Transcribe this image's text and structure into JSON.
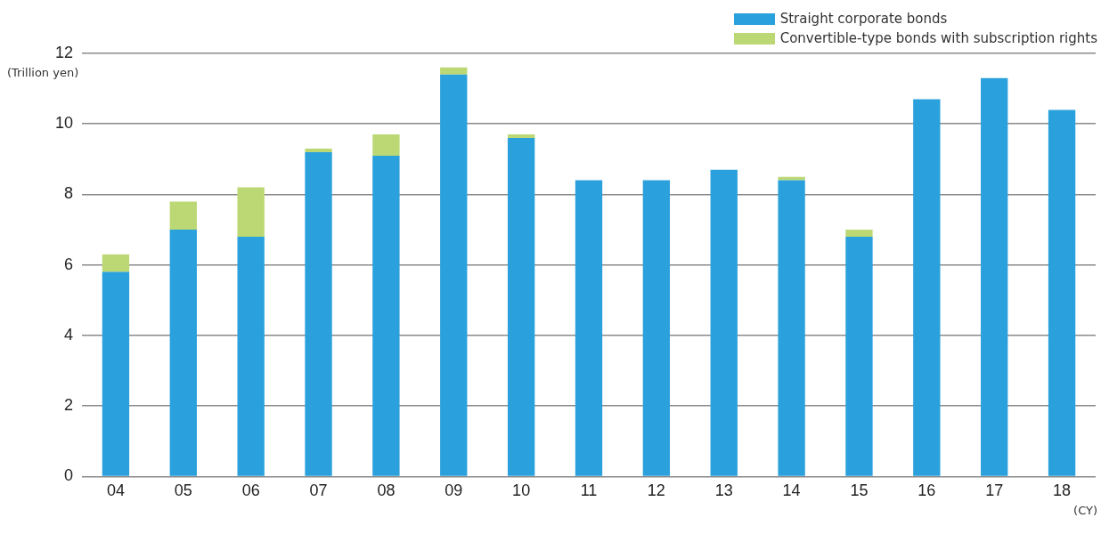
{
  "chart_data": {
    "type": "bar",
    "stacked": true,
    "ylabel": "(Trillion yen)",
    "xlabel": "(CY)",
    "categories": [
      "04",
      "05",
      "06",
      "07",
      "08",
      "09",
      "10",
      "11",
      "12",
      "13",
      "14",
      "15",
      "16",
      "17",
      "18"
    ],
    "series": [
      {
        "name": "Straight corporate bonds",
        "color": "#2aa1dc",
        "values": [
          5.8,
          7.0,
          6.8,
          9.2,
          9.1,
          11.4,
          9.6,
          8.4,
          8.4,
          8.7,
          8.4,
          6.8,
          10.7,
          11.3,
          10.4
        ]
      },
      {
        "name": "Convertible-type bonds with subscription rights",
        "color": "#bbd874",
        "values": [
          0.5,
          0.8,
          1.4,
          0.1,
          0.6,
          0.2,
          0.1,
          0,
          0,
          0,
          0.1,
          0.2,
          0,
          0,
          0
        ]
      }
    ],
    "ylim": [
      0,
      12
    ],
    "yticks": [
      0,
      2,
      4,
      6,
      8,
      10,
      12
    ],
    "grid": "y",
    "legend": "top right"
  }
}
